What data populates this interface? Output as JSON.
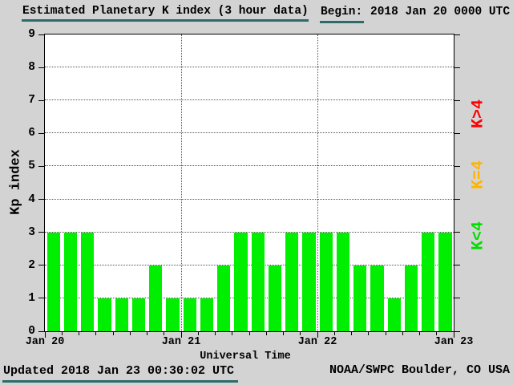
{
  "chart_data": {
    "type": "bar",
    "title": "Estimated Planetary K index (3 hour data)",
    "begin_label": "Begin:",
    "begin_time": "2018 Jan 20 0000 UTC",
    "xlabel": "Universal Time",
    "ylabel": "Kp index",
    "ylim": [
      0,
      9
    ],
    "yticks": [
      0,
      1,
      2,
      3,
      4,
      5,
      6,
      7,
      8,
      9
    ],
    "x_day_labels": [
      "Jan 20",
      "Jan 21",
      "Jan 22",
      "Jan 23"
    ],
    "interval_hours": 3,
    "bars_per_day": 8,
    "grid": "dotted",
    "values": [
      3,
      3,
      3,
      1,
      1,
      1,
      2,
      1,
      1,
      1,
      2,
      3,
      3,
      2,
      3,
      3,
      3,
      3,
      2,
      2,
      1,
      2,
      3,
      3
    ],
    "legend": {
      "position": "right-vertical",
      "items": [
        {
          "label": "K>4",
          "color": "#ff0000"
        },
        {
          "label": "K=4",
          "color": "#ffb400"
        },
        {
          "label": "K<4",
          "color": "#00dd00"
        }
      ]
    }
  },
  "footer": {
    "updated": "Updated 2018 Jan 23 00:30:02 UTC",
    "source": "NOAA/SWPC Boulder, CO USA"
  },
  "colors": {
    "background": "#d3d3d3",
    "plot_background": "#ffffff",
    "bar": "#00ee00",
    "underline": "#2d6b6b"
  }
}
